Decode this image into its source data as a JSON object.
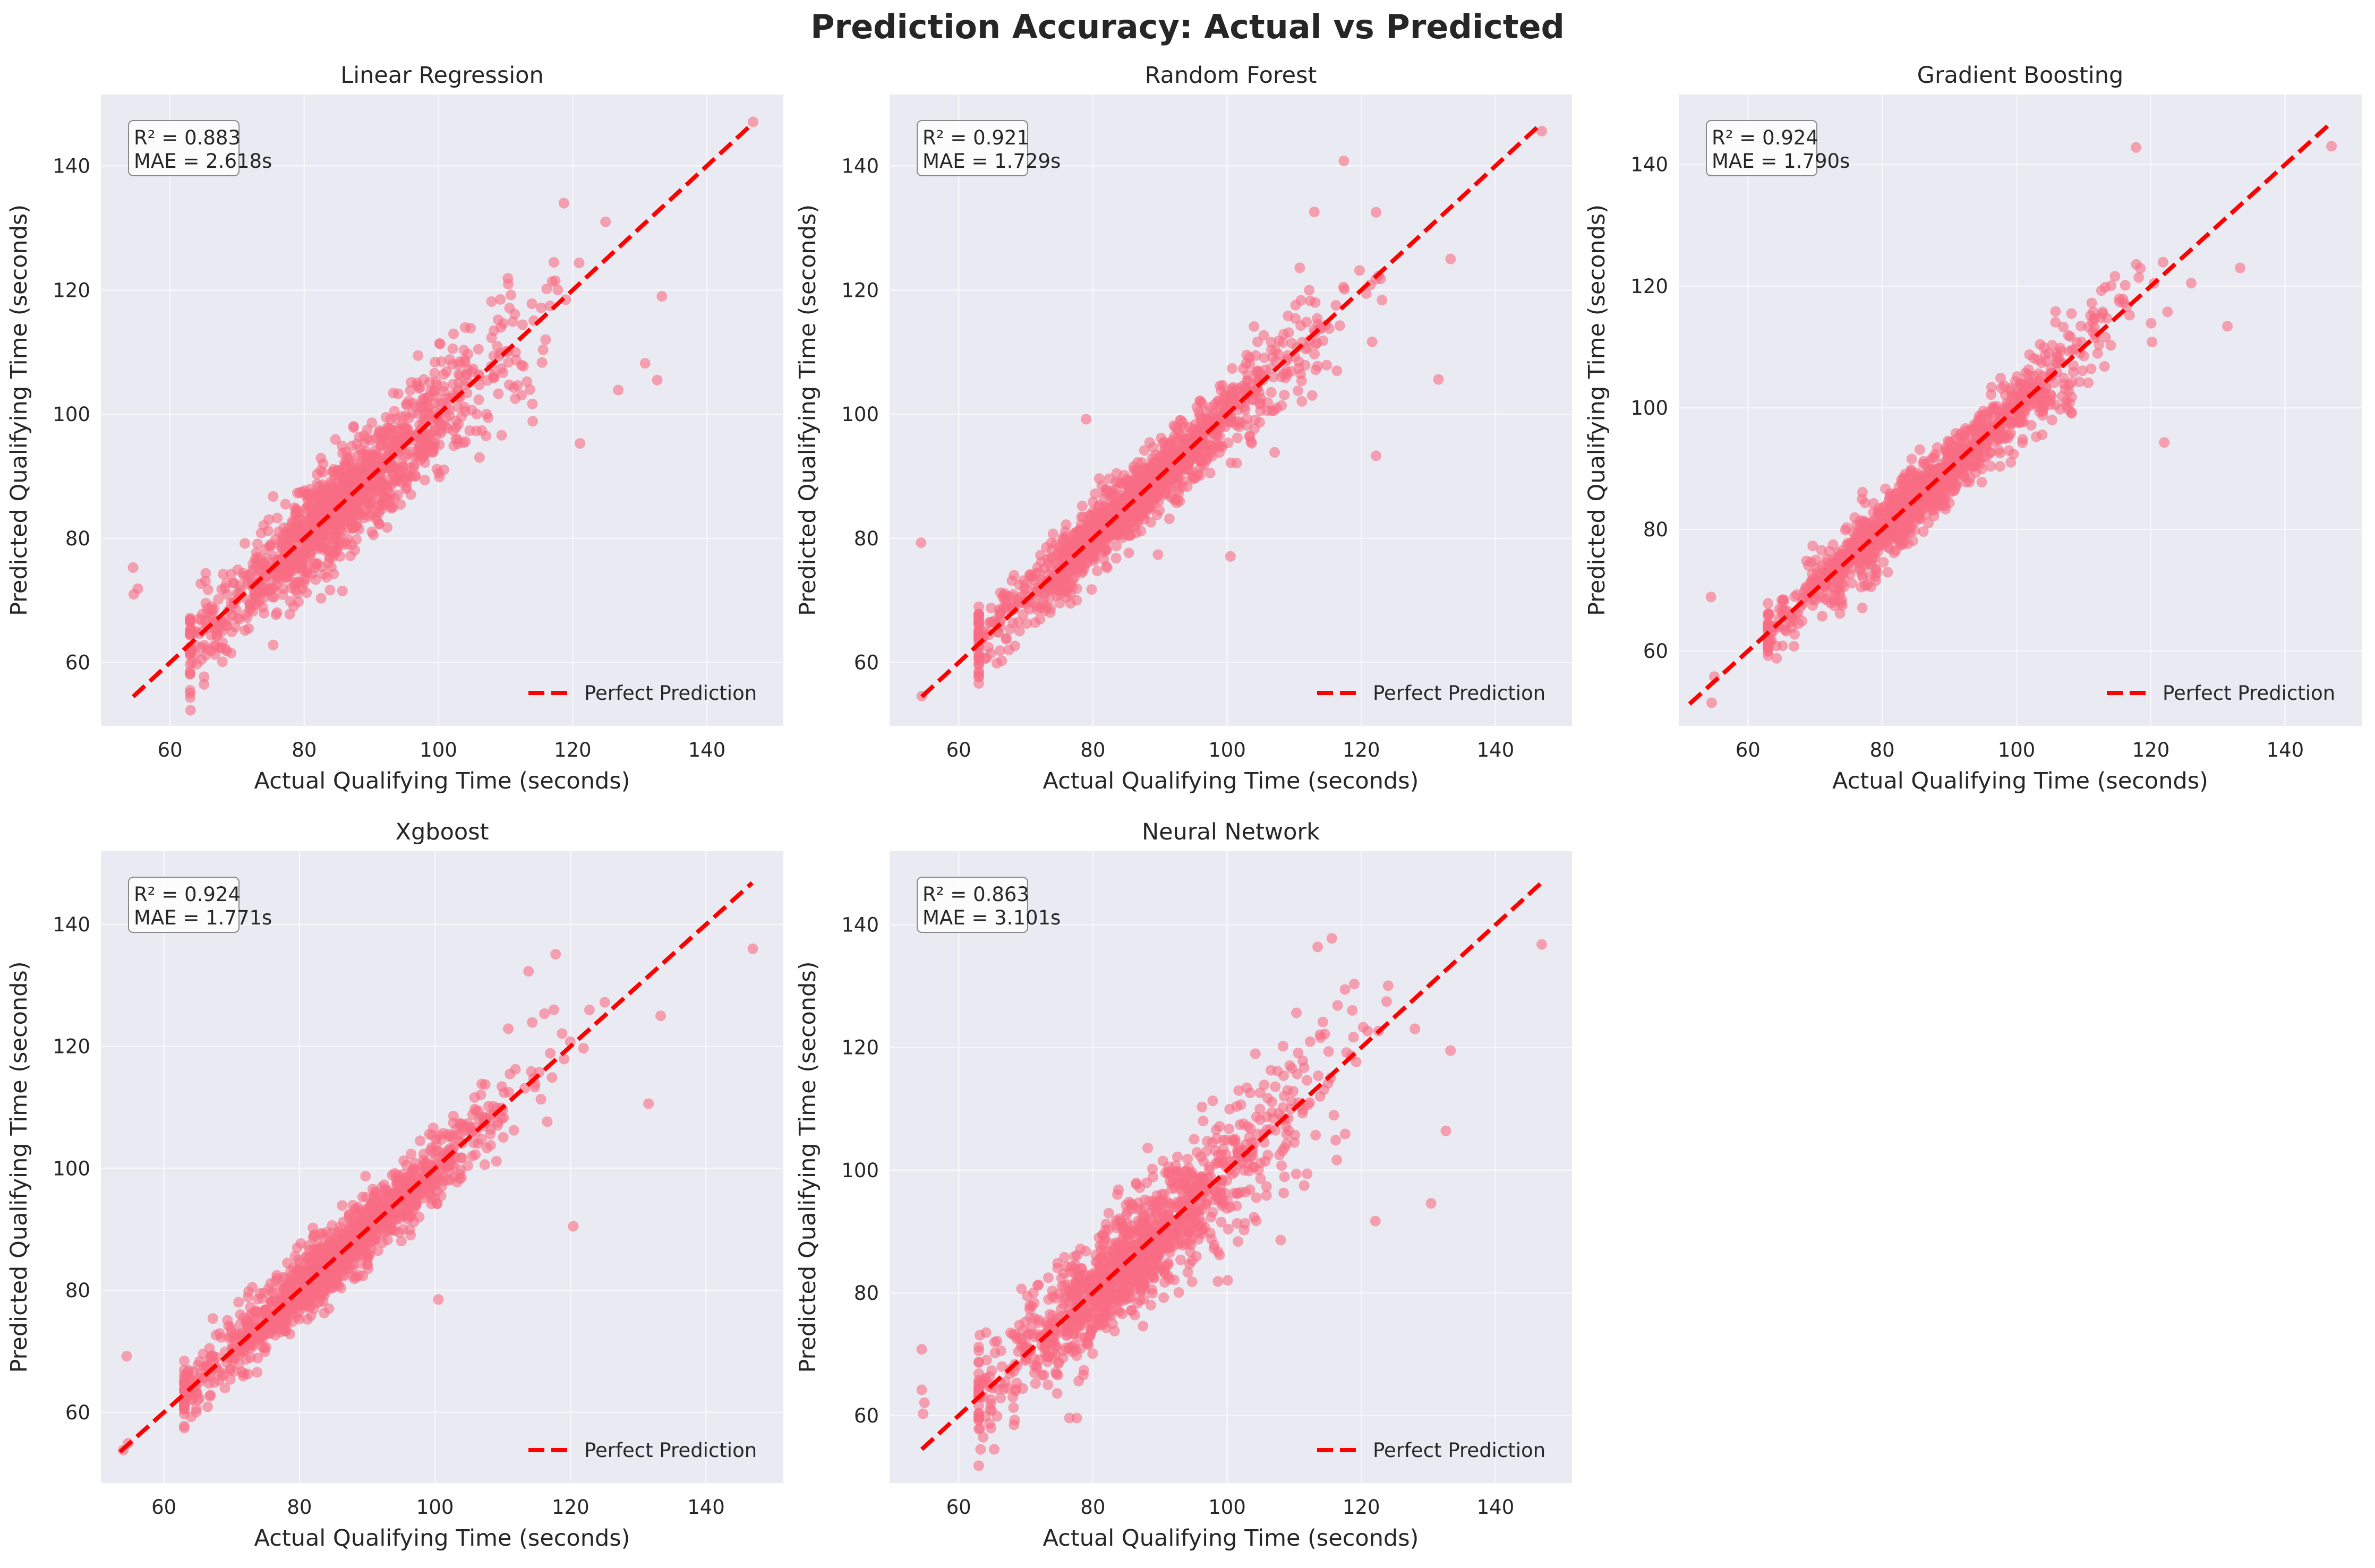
{
  "figure": {
    "title": "Prediction Accuracy: Actual vs Predicted"
  },
  "colors": {
    "points": "#f96c84",
    "perfect_line": "#ff0000",
    "axes_bg": "#eaeaf2",
    "grid": "#ffffff"
  },
  "chart_data": [
    {
      "type": "scatter",
      "title": "Linear Regression",
      "xlabel": "Actual Qualifying Time (seconds)",
      "ylabel": "Predicted Qualifying Time (seconds)",
      "xlim": [
        49.7,
        151.4
      ],
      "ylim": [
        49.8,
        151.5
      ],
      "xticks": [
        60,
        80,
        100,
        120,
        140
      ],
      "yticks": [
        60,
        80,
        100,
        120,
        140
      ],
      "stats": [
        "R² = 0.883",
        "MAE = 2.618s"
      ],
      "legend": "Perfect Prediction",
      "legend_position": "lower right",
      "grid": true,
      "perfect_line": [
        [
          54.5,
          54.5
        ],
        [
          146.8,
          146.8
        ]
      ],
      "noise": 4.2,
      "outliers": [
        [
          54.5,
          75.3
        ],
        [
          54.6,
          71.0
        ],
        [
          55.2,
          71.9
        ],
        [
          118.7,
          134.0
        ],
        [
          124.9,
          131.0
        ],
        [
          133.3,
          119.0
        ],
        [
          146.9,
          147.1
        ],
        [
          121.1,
          95.3
        ],
        [
          126.8,
          103.9
        ],
        [
          130.8,
          108.2
        ],
        [
          132.6,
          105.5
        ]
      ]
    },
    {
      "type": "scatter",
      "title": "Random Forest",
      "xlabel": "Actual Qualifying Time (seconds)",
      "ylabel": "Predicted Qualifying Time (seconds)",
      "xlim": [
        49.7,
        151.4
      ],
      "ylim": [
        49.8,
        151.5
      ],
      "xticks": [
        60,
        80,
        100,
        120,
        140
      ],
      "yticks": [
        60,
        80,
        100,
        120,
        140
      ],
      "stats": [
        "R² = 0.921",
        "MAE = 1.729s"
      ],
      "legend": "Perfect Prediction",
      "legend_position": "lower right",
      "grid": true,
      "perfect_line": [
        [
          54.5,
          54.5
        ],
        [
          146.8,
          146.8
        ]
      ],
      "noise": 2.8,
      "outliers": [
        [
          54.4,
          79.3
        ],
        [
          54.5,
          54.6
        ],
        [
          117.4,
          140.8
        ],
        [
          113.0,
          132.6
        ],
        [
          146.9,
          145.6
        ],
        [
          133.3,
          125.0
        ],
        [
          100.5,
          77.1
        ],
        [
          122.2,
          93.3
        ],
        [
          131.5,
          105.6
        ],
        [
          79.0,
          99.2
        ]
      ]
    },
    {
      "type": "scatter",
      "title": "Gradient Boosting",
      "xlabel": "Actual Qualifying Time (seconds)",
      "ylabel": "Predicted Qualifying Time (seconds)",
      "xlim": [
        49.7,
        151.4
      ],
      "ylim": [
        47.7,
        151.5
      ],
      "xticks": [
        60,
        80,
        100,
        120,
        140
      ],
      "yticks": [
        60,
        80,
        100,
        120,
        140
      ],
      "stats": [
        "R² = 0.924",
        "MAE = 1.790s"
      ],
      "legend": "Perfect Prediction",
      "legend_position": "lower right",
      "grid": true,
      "perfect_line": [
        [
          51.3,
          51.3
        ],
        [
          146.8,
          146.8
        ]
      ],
      "noise": 2.7,
      "outliers": [
        [
          54.5,
          68.9
        ],
        [
          54.6,
          51.5
        ],
        [
          55.0,
          55.8
        ],
        [
          117.8,
          142.8
        ],
        [
          146.9,
          143.0
        ],
        [
          133.3,
          123.0
        ],
        [
          131.4,
          113.4
        ],
        [
          122.0,
          94.3
        ],
        [
          113.1,
          106.8
        ],
        [
          74.5,
          79.9
        ]
      ]
    },
    {
      "type": "scatter",
      "title": "Xgboost",
      "xlabel": "Actual Qualifying Time (seconds)",
      "ylabel": "Predicted Qualifying Time (seconds)",
      "xlim": [
        50.7,
        151.4
      ],
      "ylim": [
        48.4,
        152.0
      ],
      "xticks": [
        60,
        80,
        100,
        120,
        140
      ],
      "yticks": [
        60,
        80,
        100,
        120,
        140
      ],
      "stats": [
        "R² = 0.924",
        "MAE = 1.771s"
      ],
      "legend": "Perfect Prediction",
      "legend_position": "lower right",
      "grid": true,
      "perfect_line": [
        [
          53.5,
          53.5
        ],
        [
          146.8,
          146.8
        ]
      ],
      "noise": 2.7,
      "outliers": [
        [
          54.5,
          69.2
        ],
        [
          54.0,
          53.8
        ],
        [
          54.7,
          54.9
        ],
        [
          117.8,
          135.1
        ],
        [
          146.9,
          136.0
        ],
        [
          133.3,
          125.0
        ],
        [
          100.5,
          78.5
        ],
        [
          120.4,
          90.5
        ],
        [
          131.5,
          110.6
        ],
        [
          113.8,
          132.3
        ]
      ]
    },
    {
      "type": "scatter",
      "title": "Neural Network",
      "xlabel": "Actual Qualifying Time (seconds)",
      "ylabel": "Predicted Qualifying Time (seconds)",
      "xlim": [
        49.7,
        151.4
      ],
      "ylim": [
        49.0,
        152.0
      ],
      "xticks": [
        60,
        80,
        100,
        120,
        140
      ],
      "yticks": [
        60,
        80,
        100,
        120,
        140
      ],
      "stats": [
        "R² = 0.863",
        "MAE = 3.101s"
      ],
      "legend": "Perfect Prediction",
      "legend_position": "lower right",
      "grid": true,
      "perfect_line": [
        [
          54.5,
          54.5
        ],
        [
          146.8,
          146.8
        ]
      ],
      "noise": 4.6,
      "outliers": [
        [
          54.5,
          70.8
        ],
        [
          54.5,
          64.2
        ],
        [
          54.9,
          62.1
        ],
        [
          54.7,
          60.3
        ],
        [
          115.6,
          137.8
        ],
        [
          113.5,
          136.4
        ],
        [
          146.9,
          136.8
        ],
        [
          133.3,
          119.5
        ],
        [
          130.4,
          94.6
        ],
        [
          122.1,
          91.7
        ],
        [
          132.6,
          106.4
        ],
        [
          76.5,
          59.6
        ],
        [
          77.6,
          59.6
        ],
        [
          65.3,
          54.5
        ]
      ]
    }
  ]
}
